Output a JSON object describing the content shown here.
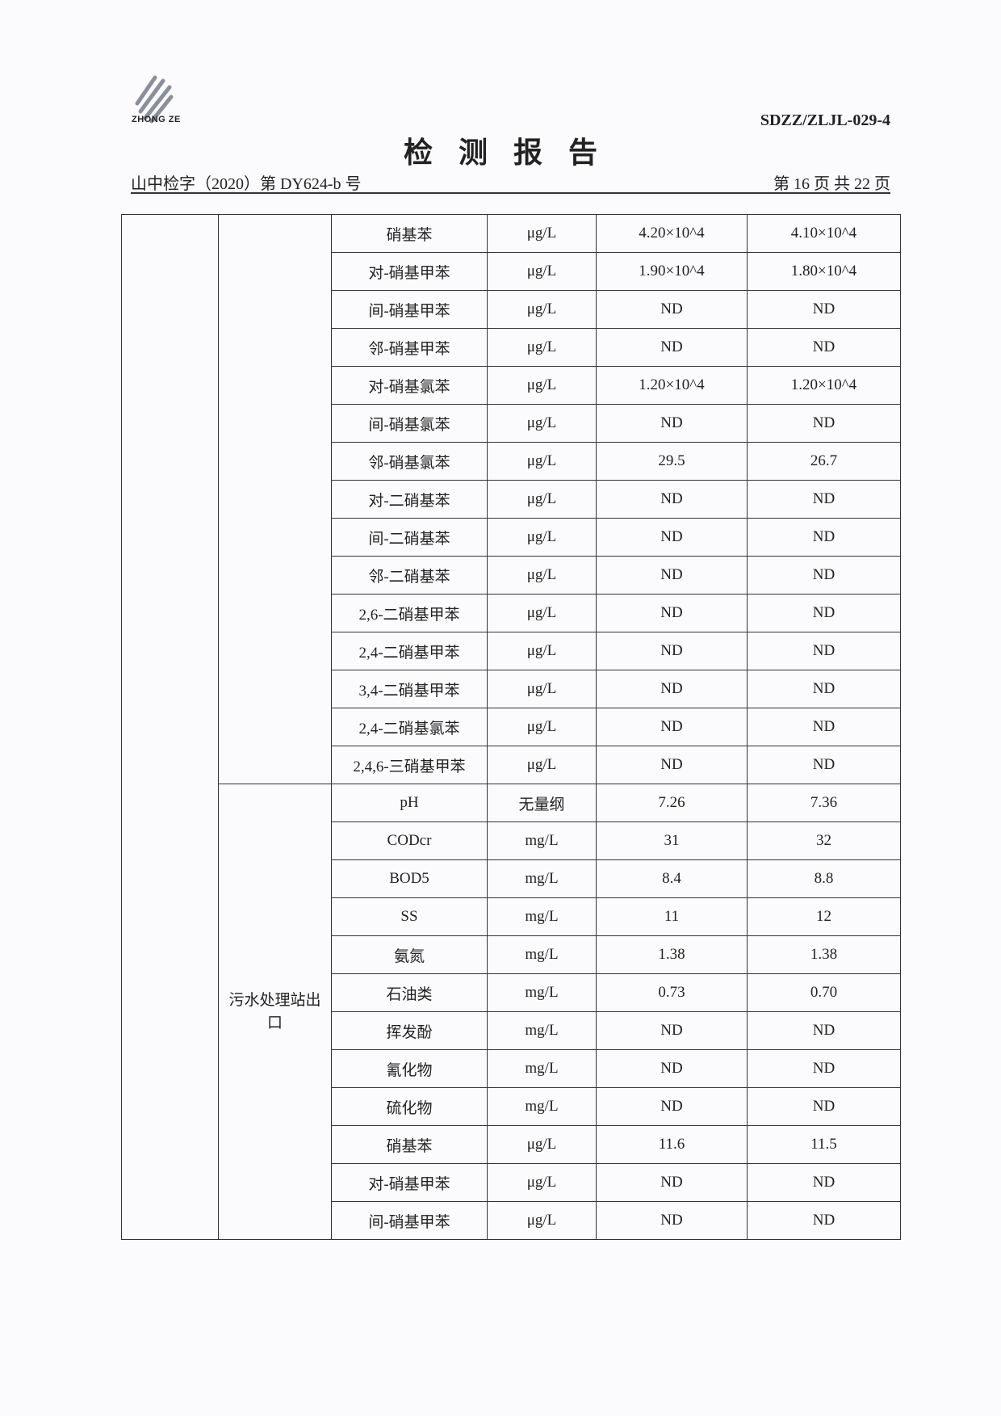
{
  "header": {
    "logo_text": "ZHONG ZE",
    "form_code": "SDZZ/ZLJL-029-4",
    "title": "检测报告",
    "report_no": "山中检字（2020）第 DY624-b 号",
    "page_info": "第 16 页  共 22 页"
  },
  "table": {
    "groups": [
      {
        "site": "",
        "rows": [
          [
            "硝基苯",
            "μg/L",
            "4.20×10^4",
            "4.10×10^4"
          ],
          [
            "对-硝基甲苯",
            "μg/L",
            "1.90×10^4",
            "1.80×10^4"
          ],
          [
            "间-硝基甲苯",
            "μg/L",
            "ND",
            "ND"
          ],
          [
            "邻-硝基甲苯",
            "μg/L",
            "ND",
            "ND"
          ],
          [
            "对-硝基氯苯",
            "μg/L",
            "1.20×10^4",
            "1.20×10^4"
          ],
          [
            "间-硝基氯苯",
            "μg/L",
            "ND",
            "ND"
          ],
          [
            "邻-硝基氯苯",
            "μg/L",
            "29.5",
            "26.7"
          ],
          [
            "对-二硝基苯",
            "μg/L",
            "ND",
            "ND"
          ],
          [
            "间-二硝基苯",
            "μg/L",
            "ND",
            "ND"
          ],
          [
            "邻-二硝基苯",
            "μg/L",
            "ND",
            "ND"
          ],
          [
            "2,6-二硝基甲苯",
            "μg/L",
            "ND",
            "ND"
          ],
          [
            "2,4-二硝基甲苯",
            "μg/L",
            "ND",
            "ND"
          ],
          [
            "3,4-二硝基甲苯",
            "μg/L",
            "ND",
            "ND"
          ],
          [
            "2,4-二硝基氯苯",
            "μg/L",
            "ND",
            "ND"
          ],
          [
            "2,4,6-三硝基甲苯",
            "μg/L",
            "ND",
            "ND"
          ]
        ]
      },
      {
        "site": "污水处理站出口",
        "rows": [
          [
            "pH",
            "无量纲",
            "7.26",
            "7.36"
          ],
          [
            "CODcr",
            "mg/L",
            "31",
            "32"
          ],
          [
            "BOD5",
            "mg/L",
            "8.4",
            "8.8"
          ],
          [
            "SS",
            "mg/L",
            "11",
            "12"
          ],
          [
            "氨氮",
            "mg/L",
            "1.38",
            "1.38"
          ],
          [
            "石油类",
            "mg/L",
            "0.73",
            "0.70"
          ],
          [
            "挥发酚",
            "mg/L",
            "ND",
            "ND"
          ],
          [
            "氰化物",
            "mg/L",
            "ND",
            "ND"
          ],
          [
            "硫化物",
            "mg/L",
            "ND",
            "ND"
          ],
          [
            "硝基苯",
            "μg/L",
            "11.6",
            "11.5"
          ],
          [
            "对-硝基甲苯",
            "μg/L",
            "ND",
            "ND"
          ],
          [
            "间-硝基甲苯",
            "μg/L",
            "ND",
            "ND"
          ]
        ]
      }
    ]
  }
}
